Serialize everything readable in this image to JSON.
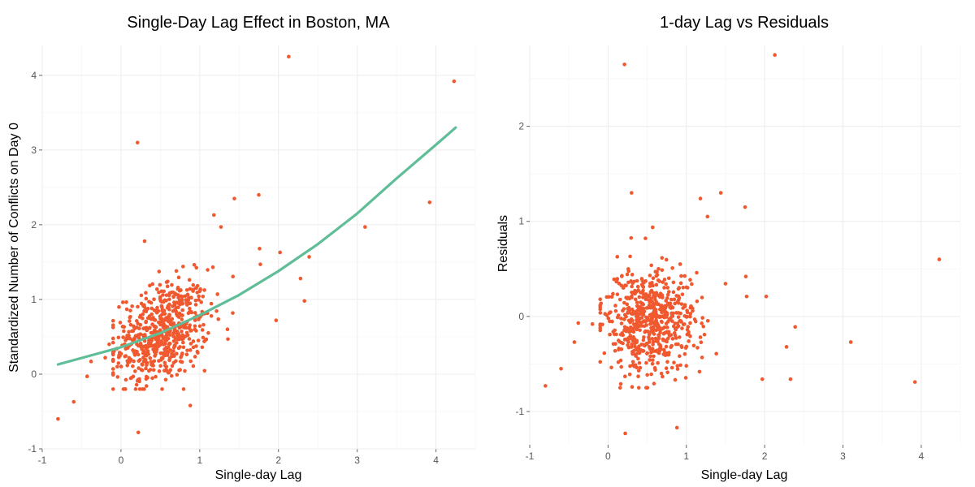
{
  "colors": {
    "points": "#f0592f",
    "curve": "#5fbd97",
    "grid": "#ececec"
  },
  "chart_data": [
    {
      "type": "scatter",
      "title": "Single-Day Lag Effect in Boston, MA",
      "xlabel": "Single-day Lag",
      "ylabel": "Standardized Number of Conflicts on Day 0",
      "xlim": [
        -1,
        4.5
      ],
      "ylim": [
        -1,
        4.4
      ],
      "xticks": [
        -1,
        0,
        1,
        2,
        3,
        4
      ],
      "yticks": [
        -1,
        0,
        1,
        2,
        3,
        4
      ],
      "grid": true,
      "fit_curve": {
        "x": [
          -0.8,
          0,
          0.5,
          1,
          1.5,
          2,
          2.5,
          3,
          3.5,
          4,
          4.25
        ],
        "y": [
          0.13,
          0.36,
          0.55,
          0.79,
          1.06,
          1.38,
          1.74,
          2.15,
          2.62,
          3.07,
          3.3
        ]
      },
      "outliers": [
        [
          -0.8,
          -0.6
        ],
        [
          -0.6,
          -0.37
        ],
        [
          -0.43,
          -0.03
        ],
        [
          -0.38,
          0.17
        ],
        [
          -0.2,
          0.22
        ],
        [
          -0.15,
          0.4
        ],
        [
          0.21,
          3.1
        ],
        [
          0.22,
          -0.78
        ],
        [
          0.3,
          1.78
        ],
        [
          0.88,
          -0.42
        ],
        [
          1.18,
          2.13
        ],
        [
          1.27,
          1.97
        ],
        [
          1.44,
          2.35
        ],
        [
          1.75,
          2.4
        ],
        [
          1.76,
          1.68
        ],
        [
          1.77,
          1.47
        ],
        [
          1.97,
          0.72
        ],
        [
          2.02,
          1.63
        ],
        [
          2.13,
          4.25
        ],
        [
          2.28,
          1.28
        ],
        [
          2.33,
          0.98
        ],
        [
          2.39,
          1.57
        ],
        [
          3.1,
          1.97
        ],
        [
          3.92,
          2.3
        ],
        [
          4.23,
          3.92
        ]
      ],
      "cluster": {
        "count": 620,
        "x_center": 0.52,
        "y_center": 0.55,
        "x_spread": 0.3,
        "y_spread": 0.33,
        "xmin": -0.1,
        "xmax": 1.5,
        "ymin": -0.2,
        "ymax": 1.6
      }
    },
    {
      "type": "scatter",
      "title": "1-day Lag vs Residuals",
      "xlabel": "Single-day Lag",
      "ylabel": "Residuals",
      "xlim": [
        -1,
        4.5
      ],
      "ylim": [
        -1.35,
        2.85
      ],
      "xticks": [
        -1,
        0,
        1,
        2,
        3,
        4
      ],
      "yticks": [
        -1,
        0,
        1,
        2
      ],
      "grid": true,
      "outliers": [
        [
          -0.8,
          -0.73
        ],
        [
          -0.6,
          -0.55
        ],
        [
          -0.43,
          -0.27
        ],
        [
          -0.38,
          -0.07
        ],
        [
          -0.2,
          -0.08
        ],
        [
          0.21,
          2.65
        ],
        [
          0.22,
          -1.23
        ],
        [
          0.3,
          1.3
        ],
        [
          0.88,
          -1.17
        ],
        [
          1.18,
          1.24
        ],
        [
          1.27,
          1.05
        ],
        [
          1.44,
          1.3
        ],
        [
          1.75,
          1.15
        ],
        [
          1.76,
          0.42
        ],
        [
          1.77,
          0.21
        ],
        [
          1.97,
          -0.66
        ],
        [
          2.02,
          0.21
        ],
        [
          2.13,
          2.75
        ],
        [
          2.28,
          -0.32
        ],
        [
          2.33,
          -0.66
        ],
        [
          2.39,
          -0.11
        ],
        [
          3.1,
          -0.27
        ],
        [
          3.92,
          -0.69
        ],
        [
          4.23,
          0.6
        ]
      ],
      "cluster": {
        "count": 620,
        "x_center": 0.52,
        "y_center": -0.05,
        "x_spread": 0.3,
        "y_spread": 0.28,
        "xmin": -0.1,
        "xmax": 1.5,
        "ymin": -0.75,
        "ymax": 1.0
      }
    }
  ]
}
